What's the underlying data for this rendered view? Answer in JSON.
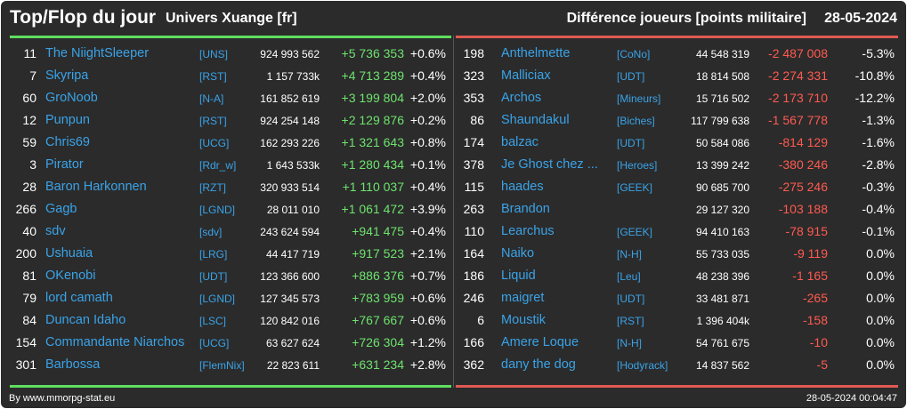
{
  "header": {
    "title": "Top/Flop du jour",
    "universe": "Univers Xuange [fr]",
    "metric": "Différence joueurs [points militaire]",
    "date": "28-05-2024"
  },
  "top": [
    {
      "rank": "11",
      "name": "The NiightSleeper",
      "ally": "[UNS]",
      "points": "924 993 562",
      "diff": "+5 736 353",
      "pct": "+0.6%"
    },
    {
      "rank": "7",
      "name": "Skyripa",
      "ally": "[RST]",
      "points": "1 157 733k",
      "diff": "+4 713 289",
      "pct": "+0.4%"
    },
    {
      "rank": "60",
      "name": "GroNoob",
      "ally": "[N-A]",
      "points": "161 852 619",
      "diff": "+3 199 804",
      "pct": "+2.0%"
    },
    {
      "rank": "12",
      "name": "Punpun",
      "ally": "[RST]",
      "points": "924 254 148",
      "diff": "+2 129 876",
      "pct": "+0.2%"
    },
    {
      "rank": "59",
      "name": "Chris69",
      "ally": "[UCG]",
      "points": "162 293 226",
      "diff": "+1 321 643",
      "pct": "+0.8%"
    },
    {
      "rank": "3",
      "name": "Pirator",
      "ally": "[Rdr_w]",
      "points": "1 643 533k",
      "diff": "+1 280 434",
      "pct": "+0.1%"
    },
    {
      "rank": "28",
      "name": "Baron Harkonnen",
      "ally": "[RZT]",
      "points": "320 933 514",
      "diff": "+1 110 037",
      "pct": "+0.4%"
    },
    {
      "rank": "266",
      "name": "Gagb",
      "ally": "[LGND]",
      "points": "28 011 010",
      "diff": "+1 061 472",
      "pct": "+3.9%"
    },
    {
      "rank": "40",
      "name": "sdv",
      "ally": "[sdv]",
      "points": "243 624 594",
      "diff": "+941 475",
      "pct": "+0.4%"
    },
    {
      "rank": "200",
      "name": "Ushuaia",
      "ally": "[LRG]",
      "points": "44 417 719",
      "diff": "+917 523",
      "pct": "+2.1%"
    },
    {
      "rank": "81",
      "name": "OKenobi",
      "ally": "[UDT]",
      "points": "123 366 600",
      "diff": "+886 376",
      "pct": "+0.7%"
    },
    {
      "rank": "79",
      "name": "lord camath",
      "ally": "[LGND]",
      "points": "127 345 573",
      "diff": "+783 959",
      "pct": "+0.6%"
    },
    {
      "rank": "84",
      "name": "Duncan Idaho",
      "ally": "[LSC]",
      "points": "120 842 016",
      "diff": "+767 667",
      "pct": "+0.6%"
    },
    {
      "rank": "154",
      "name": "Commandante Niarchos",
      "ally": "[UCG]",
      "points": "63 627 624",
      "diff": "+726 304",
      "pct": "+1.2%"
    },
    {
      "rank": "301",
      "name": "Barbossa",
      "ally": "[FlemNix]",
      "points": "22 823 611",
      "diff": "+631 234",
      "pct": "+2.8%"
    }
  ],
  "flop": [
    {
      "rank": "198",
      "name": "Anthelmette",
      "ally": "[CoNo]",
      "points": "44 548 319",
      "diff": "-2 487 008",
      "pct": "-5.3%"
    },
    {
      "rank": "323",
      "name": "Malliciax",
      "ally": "[UDT]",
      "points": "18 814 508",
      "diff": "-2 274 331",
      "pct": "-10.8%"
    },
    {
      "rank": "353",
      "name": "Archos",
      "ally": "[Mineurs]",
      "points": "15 716 502",
      "diff": "-2 173 710",
      "pct": "-12.2%"
    },
    {
      "rank": "86",
      "name": "Shaundakul",
      "ally": "[Biches]",
      "points": "117 799 638",
      "diff": "-1 567 778",
      "pct": "-1.3%"
    },
    {
      "rank": "174",
      "name": "balzac",
      "ally": "[UDT]",
      "points": "50 584 086",
      "diff": "-814 129",
      "pct": "-1.6%"
    },
    {
      "rank": "378",
      "name": "Je Ghost chez ...",
      "ally": "[Heroes]",
      "points": "13 399 242",
      "diff": "-380 246",
      "pct": "-2.8%"
    },
    {
      "rank": "115",
      "name": "haades",
      "ally": "[GEEK]",
      "points": "90 685 700",
      "diff": "-275 246",
      "pct": "-0.3%"
    },
    {
      "rank": "263",
      "name": "Brandon",
      "ally": "",
      "points": "29 127 320",
      "diff": "-103 188",
      "pct": "-0.4%"
    },
    {
      "rank": "110",
      "name": "Learchus",
      "ally": "[GEEK]",
      "points": "94 410 163",
      "diff": "-78 915",
      "pct": "-0.1%"
    },
    {
      "rank": "164",
      "name": "Naiko",
      "ally": "[N-H]",
      "points": "55 733 035",
      "diff": "-9 119",
      "pct": "0.0%"
    },
    {
      "rank": "186",
      "name": "Liquid",
      "ally": "[Leu]",
      "points": "48 238 396",
      "diff": "-1 165",
      "pct": "0.0%"
    },
    {
      "rank": "246",
      "name": "maigret",
      "ally": "[UDT]",
      "points": "33 481 871",
      "diff": "-265",
      "pct": "0.0%"
    },
    {
      "rank": "6",
      "name": "Moustik",
      "ally": "[RST]",
      "points": "1 396 404k",
      "diff": "-158",
      "pct": "0.0%"
    },
    {
      "rank": "166",
      "name": "Amere Loque",
      "ally": "[N-H]",
      "points": "54 761 675",
      "diff": "-10",
      "pct": "0.0%"
    },
    {
      "rank": "362",
      "name": "dany the dog",
      "ally": "[Hodyrack]",
      "points": "14 837 562",
      "diff": "-5",
      "pct": "0.0%"
    }
  ],
  "footer": {
    "credit": "By www.mmorpg-stat.eu",
    "timestamp": "28-05-2024 00:04:47"
  }
}
